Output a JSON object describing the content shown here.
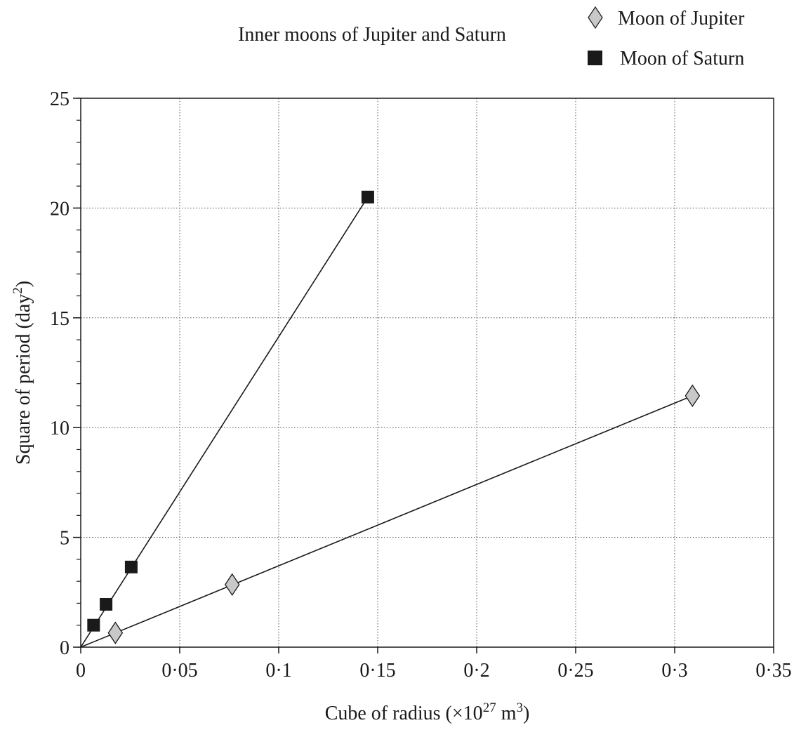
{
  "chart_data": {
    "type": "scatter",
    "title": "Inner moons of Jupiter and Saturn",
    "xlabel": {
      "prefix": "Cube of radius (×10",
      "exp": "27",
      "mid": " m",
      "exp2": "3",
      "suffix": ")"
    },
    "ylabel": {
      "prefix": "Square of period (day",
      "exp": "2",
      "suffix": ")"
    },
    "xlim": [
      0,
      0.35
    ],
    "ylim": [
      0,
      25
    ],
    "x_ticks": [
      {
        "value": 0,
        "label": "0"
      },
      {
        "value": 0.05,
        "label": "0·05"
      },
      {
        "value": 0.1,
        "label": "0·1"
      },
      {
        "value": 0.15,
        "label": "0·15"
      },
      {
        "value": 0.2,
        "label": "0·2"
      },
      {
        "value": 0.25,
        "label": "0·25"
      },
      {
        "value": 0.3,
        "label": "0·3"
      },
      {
        "value": 0.35,
        "label": "0·35"
      }
    ],
    "y_ticks": [
      {
        "value": 0,
        "label": "0"
      },
      {
        "value": 5,
        "label": "5"
      },
      {
        "value": 10,
        "label": "10"
      },
      {
        "value": 15,
        "label": "15"
      },
      {
        "value": 20,
        "label": "20"
      },
      {
        "value": 25,
        "label": "25"
      }
    ],
    "y_minor_step": 1,
    "grid": true,
    "legend_position": "top-right",
    "series": [
      {
        "name": "Moon of Jupiter",
        "marker": "diamond",
        "color": "#c8c8c8",
        "points": [
          {
            "x": 0.0175,
            "y": 0.65
          },
          {
            "x": 0.0765,
            "y": 2.85
          },
          {
            "x": 0.309,
            "y": 11.45
          }
        ],
        "fit_line": {
          "x": [
            0,
            0.309
          ],
          "y": [
            0,
            11.45
          ]
        }
      },
      {
        "name": "Moon of Saturn",
        "marker": "square",
        "color": "#1a1a1a",
        "points": [
          {
            "x": 0.0065,
            "y": 1.0
          },
          {
            "x": 0.0128,
            "y": 1.95
          },
          {
            "x": 0.0255,
            "y": 3.65
          },
          {
            "x": 0.145,
            "y": 20.5
          }
        ],
        "fit_line": {
          "x": [
            0,
            0.145
          ],
          "y": [
            0,
            20.5
          ]
        }
      }
    ]
  }
}
